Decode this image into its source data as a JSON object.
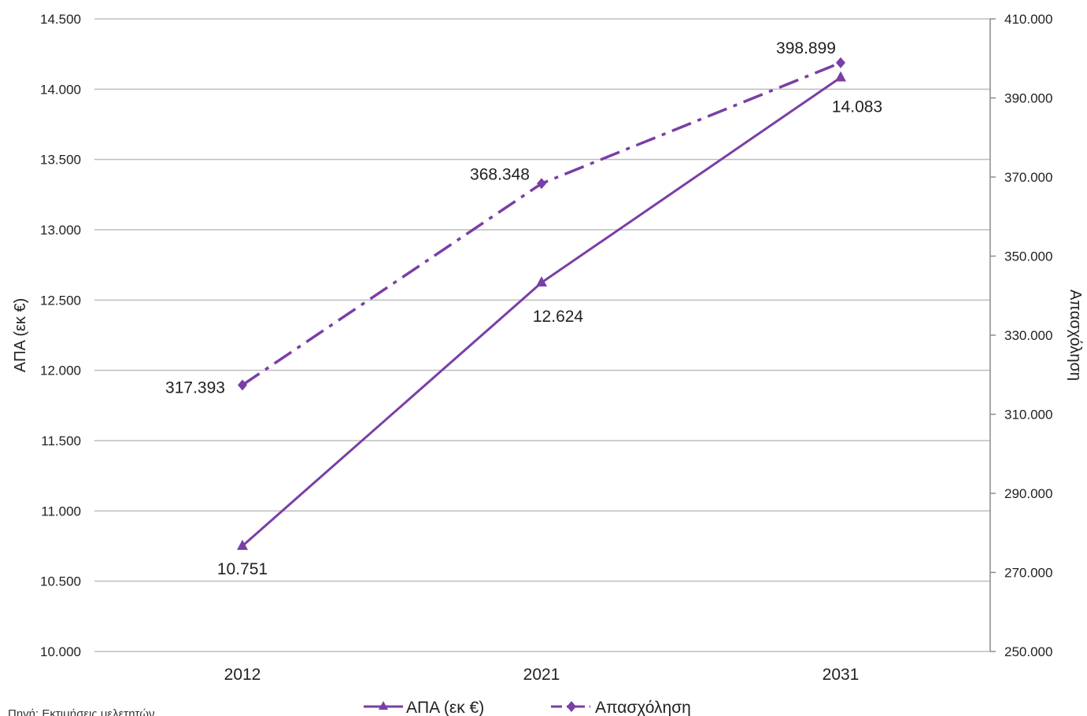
{
  "chart_data": {
    "type": "line",
    "categories": [
      "2012",
      "2021",
      "2031"
    ],
    "series": [
      {
        "name": "ΑΠΑ (εκ €)",
        "axis": "left",
        "marker": "triangle",
        "line_style": "solid",
        "values": [
          10751,
          12624,
          14083
        ],
        "labels": [
          "10.751",
          "12.624",
          "14.083"
        ]
      },
      {
        "name": "Απασχόληση",
        "axis": "right",
        "marker": "diamond",
        "line_style": "dash-dot",
        "values": [
          317393,
          368348,
          398899
        ],
        "labels": [
          "317.393",
          "368.348",
          "398.899"
        ]
      }
    ],
    "y_left": {
      "label": "ΑΠΑ  (εκ €)",
      "ylim": [
        10000,
        14500
      ],
      "ticks": [
        10000,
        10500,
        11000,
        11500,
        12000,
        12500,
        13000,
        13500,
        14000,
        14500
      ],
      "tick_labels": [
        "10.000",
        "10.500",
        "11.000",
        "11.500",
        "12.000",
        "12.500",
        "13.000",
        "13.500",
        "14.000",
        "14.500"
      ]
    },
    "y_right": {
      "label": "Απασχόληση",
      "ylim": [
        250000,
        410000
      ],
      "ticks": [
        250000,
        270000,
        290000,
        310000,
        330000,
        350000,
        370000,
        390000,
        410000
      ],
      "tick_labels": [
        "250.000",
        "270.000",
        "290.000",
        "310.000",
        "330.000",
        "350.000",
        "370.000",
        "390.000",
        "410.000"
      ]
    },
    "grid": true,
    "legend_position": "bottom-center",
    "source_note": "Πηγή: Εκτιμήσεις μελετητών",
    "colors": {
      "series": "#7a3ea6",
      "grid": "#bdbdbd",
      "axis": "#8c8c8c"
    }
  }
}
